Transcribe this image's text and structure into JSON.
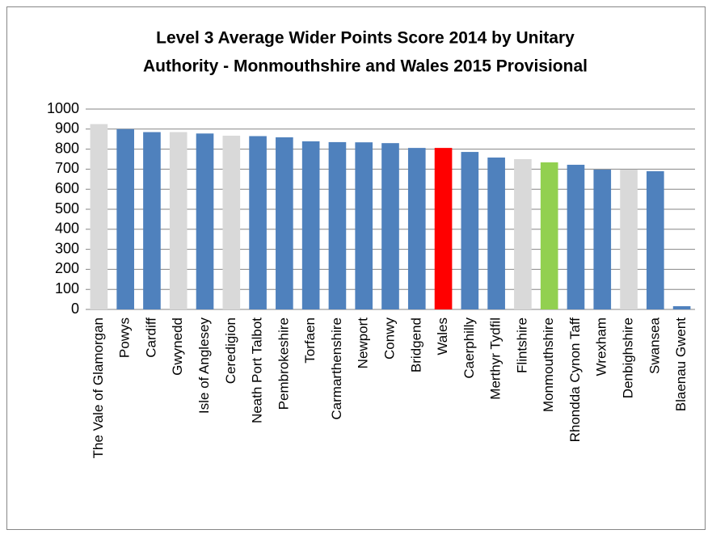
{
  "chart_data": {
    "type": "bar",
    "title": [
      "Level 3 Average Wider Points Score 2014 by Unitary",
      "Authority - Monmouthshire and Wales 2015 Provisional"
    ],
    "categories": [
      "The Vale of Glamorgan",
      "Powys",
      "Cardiff",
      "Gwynedd",
      "Isle of Anglesey",
      "Ceredigion",
      "Neath Port Talbot",
      "Pembrokeshire",
      "Torfaen",
      "Carmarthenshire",
      "Newport",
      "Conwy",
      "Bridgend",
      "Wales",
      "Caerphilly",
      "Merthyr Tydfil",
      "Flintshire",
      "Monmouthshire",
      "Rhondda Cynon Taff",
      "Wrexham",
      "Denbighshire",
      "Swansea",
      "Blaenau Gwent"
    ],
    "values": [
      925,
      900,
      885,
      885,
      878,
      867,
      865,
      859,
      839,
      835,
      834,
      830,
      806,
      806,
      786,
      758,
      750,
      734,
      722,
      698,
      698,
      690,
      16
    ],
    "colors": [
      "#d9d9d9",
      "#4f81bd",
      "#4f81bd",
      "#d9d9d9",
      "#4f81bd",
      "#d9d9d9",
      "#4f81bd",
      "#4f81bd",
      "#4f81bd",
      "#4f81bd",
      "#4f81bd",
      "#4f81bd",
      "#4f81bd",
      "#ff0000",
      "#4f81bd",
      "#4f81bd",
      "#d9d9d9",
      "#92d050",
      "#4f81bd",
      "#4f81bd",
      "#d9d9d9",
      "#4f81bd",
      "#4f81bd"
    ],
    "ylim": [
      0,
      1000
    ],
    "yticks": [
      0,
      100,
      200,
      300,
      400,
      500,
      600,
      700,
      800,
      900,
      1000
    ],
    "grid": true
  }
}
